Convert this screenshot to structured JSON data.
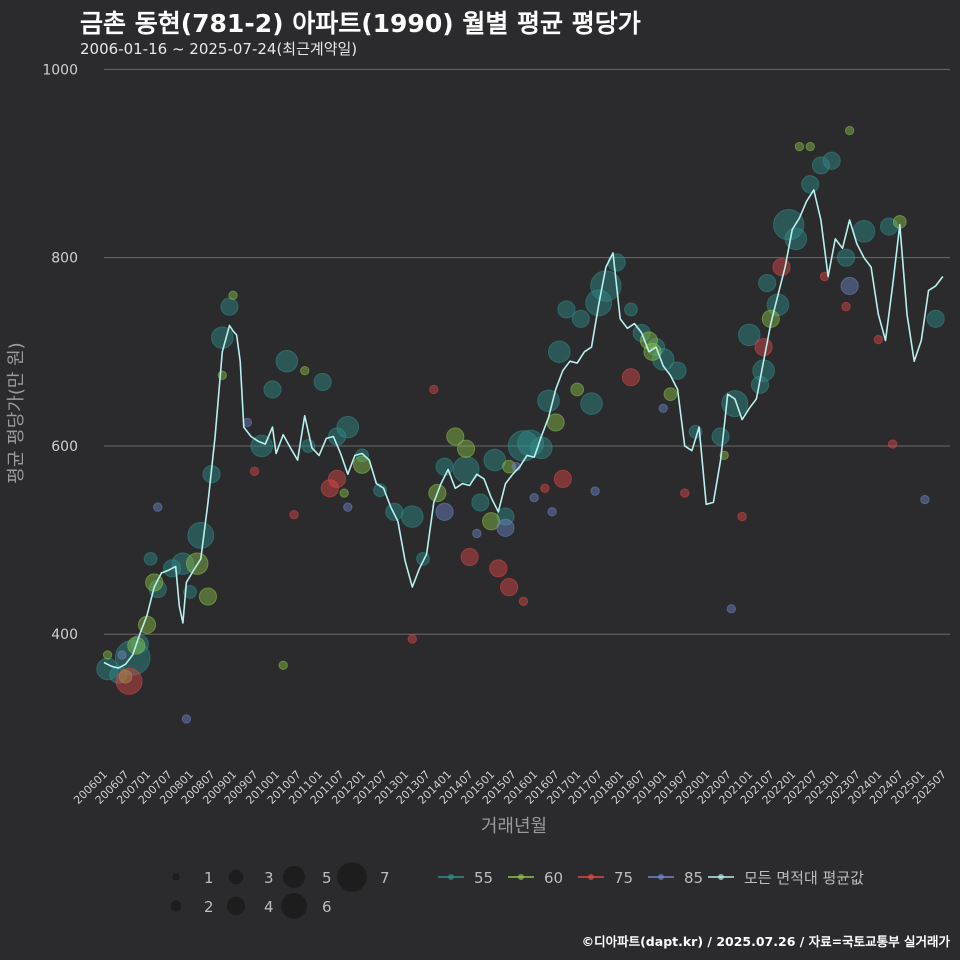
{
  "header": {
    "title": "금촌 동현(781-2) 아파트(1990) 월별 평균 평당가",
    "subtitle": "2006-01-16 ~ 2025-07-24(최근계약일)"
  },
  "footer": {
    "credit": "©디아파트(dapt.kr) / 2025.07.26 / 자료=국토교통부 실거래가"
  },
  "colors": {
    "background": "#2b2b2d",
    "grid": "#6a6a6a",
    "mean_line": "#b8f0ee",
    "s55": "#2f8f8c",
    "s60": "#8bc34a",
    "s75": "#e04848",
    "s85": "#6f88c8"
  },
  "chart_data": {
    "type": "scatter",
    "title": "금촌 동현(781-2) 아파트(1990) 월별 평균 평당가",
    "xlabel": "거래년월",
    "ylabel": "평균 평당가(만 원)",
    "ylim": [
      260,
      1010
    ],
    "yticks": [
      400,
      600,
      800,
      1000
    ],
    "xlim": [
      "2006-01",
      "2025-09"
    ],
    "xticks": [
      "200601",
      "200607",
      "200701",
      "200707",
      "200801",
      "200807",
      "200901",
      "200907",
      "201001",
      "201007",
      "201101",
      "201107",
      "201201",
      "201207",
      "201301",
      "201307",
      "201401",
      "201407",
      "201501",
      "201507",
      "201601",
      "201607",
      "201701",
      "201707",
      "201801",
      "201807",
      "201901",
      "201907",
      "202001",
      "202007",
      "202101",
      "202107",
      "202201",
      "202207",
      "202301",
      "202307",
      "202401",
      "202407",
      "202501",
      "202507"
    ],
    "grid": true,
    "size_legend": {
      "title": "",
      "values": [
        1,
        2,
        3,
        4,
        5,
        6,
        7
      ]
    },
    "series_legend": [
      {
        "key": "s55",
        "name": "55"
      },
      {
        "key": "s60",
        "name": "60"
      },
      {
        "key": "s75",
        "name": "75"
      },
      {
        "key": "s85",
        "name": "85"
      },
      {
        "key": "mean",
        "name": "모든 면적대 평균값"
      }
    ],
    "mean_line": {
      "name": "모든 면적대 평균값",
      "points": [
        [
          "2006-01",
          370
        ],
        [
          "2006-03",
          366
        ],
        [
          "2006-05",
          364
        ],
        [
          "2006-07",
          368
        ],
        [
          "2006-09",
          378
        ],
        [
          "2006-11",
          400
        ],
        [
          "2007-01",
          420
        ],
        [
          "2007-03",
          450
        ],
        [
          "2007-05",
          465
        ],
        [
          "2007-07",
          468
        ],
        [
          "2007-09",
          472
        ],
        [
          "2007-10",
          430
        ],
        [
          "2007-11",
          412
        ],
        [
          "2007-12",
          455
        ],
        [
          "2008-02",
          468
        ],
        [
          "2008-04",
          480
        ],
        [
          "2008-06",
          540
        ],
        [
          "2008-08",
          610
        ],
        [
          "2008-10",
          700
        ],
        [
          "2008-12",
          728
        ],
        [
          "2009-01",
          722
        ],
        [
          "2009-02",
          718
        ],
        [
          "2009-03",
          690
        ],
        [
          "2009-04",
          620
        ],
        [
          "2009-06",
          610
        ],
        [
          "2009-08",
          605
        ],
        [
          "2009-10",
          602
        ],
        [
          "2009-12",
          620
        ],
        [
          "2010-01",
          592
        ],
        [
          "2010-03",
          612
        ],
        [
          "2010-05",
          598
        ],
        [
          "2010-07",
          585
        ],
        [
          "2010-09",
          632
        ],
        [
          "2010-11",
          598
        ],
        [
          "2011-01",
          590
        ],
        [
          "2011-03",
          608
        ],
        [
          "2011-05",
          610
        ],
        [
          "2011-07",
          592
        ],
        [
          "2011-09",
          570
        ],
        [
          "2011-11",
          590
        ],
        [
          "2012-01",
          592
        ],
        [
          "2012-03",
          585
        ],
        [
          "2012-05",
          560
        ],
        [
          "2012-07",
          555
        ],
        [
          "2012-09",
          535
        ],
        [
          "2012-11",
          520
        ],
        [
          "2013-01",
          478
        ],
        [
          "2013-03",
          450
        ],
        [
          "2013-05",
          470
        ],
        [
          "2013-07",
          485
        ],
        [
          "2013-09",
          540
        ],
        [
          "2013-11",
          560
        ],
        [
          "2014-01",
          575
        ],
        [
          "2014-03",
          555
        ],
        [
          "2014-05",
          560
        ],
        [
          "2014-07",
          558
        ],
        [
          "2014-09",
          570
        ],
        [
          "2014-11",
          565
        ],
        [
          "2015-01",
          545
        ],
        [
          "2015-03",
          530
        ],
        [
          "2015-05",
          560
        ],
        [
          "2015-07",
          570
        ],
        [
          "2015-09",
          578
        ],
        [
          "2015-11",
          590
        ],
        [
          "2016-01",
          588
        ],
        [
          "2016-03",
          610
        ],
        [
          "2016-05",
          630
        ],
        [
          "2016-07",
          660
        ],
        [
          "2016-09",
          680
        ],
        [
          "2016-11",
          690
        ],
        [
          "2017-01",
          688
        ],
        [
          "2017-03",
          700
        ],
        [
          "2017-05",
          705
        ],
        [
          "2017-07",
          750
        ],
        [
          "2017-09",
          790
        ],
        [
          "2017-11",
          805
        ],
        [
          "2018-01",
          735
        ],
        [
          "2018-03",
          725
        ],
        [
          "2018-05",
          730
        ],
        [
          "2018-07",
          720
        ],
        [
          "2018-09",
          700
        ],
        [
          "2018-11",
          705
        ],
        [
          "2019-01",
          685
        ],
        [
          "2019-03",
          675
        ],
        [
          "2019-05",
          660
        ],
        [
          "2019-07",
          600
        ],
        [
          "2019-09",
          595
        ],
        [
          "2019-11",
          620
        ],
        [
          "2020-01",
          538
        ],
        [
          "2020-03",
          540
        ],
        [
          "2020-05",
          585
        ],
        [
          "2020-07",
          655
        ],
        [
          "2020-09",
          650
        ],
        [
          "2020-11",
          628
        ],
        [
          "2021-01",
          640
        ],
        [
          "2021-03",
          650
        ],
        [
          "2021-05",
          690
        ],
        [
          "2021-07",
          730
        ],
        [
          "2021-09",
          760
        ],
        [
          "2021-11",
          790
        ],
        [
          "2022-01",
          830
        ],
        [
          "2022-03",
          842
        ],
        [
          "2022-05",
          860
        ],
        [
          "2022-07",
          872
        ],
        [
          "2022-09",
          840
        ],
        [
          "2022-11",
          780
        ],
        [
          "2023-01",
          820
        ],
        [
          "2023-03",
          810
        ],
        [
          "2023-05",
          840
        ],
        [
          "2023-07",
          815
        ],
        [
          "2023-09",
          800
        ],
        [
          "2023-11",
          790
        ],
        [
          "2024-01",
          740
        ],
        [
          "2024-03",
          712
        ],
        [
          "2024-05",
          770
        ],
        [
          "2024-07",
          835
        ],
        [
          "2024-09",
          740
        ],
        [
          "2024-11",
          690
        ],
        [
          "2025-01",
          712
        ],
        [
          "2025-03",
          765
        ],
        [
          "2025-05",
          770
        ],
        [
          "2025-07",
          780
        ]
      ]
    },
    "scatter_series": [
      {
        "key": "s55",
        "name": "55",
        "points": [
          [
            "2006-02",
            363,
            4
          ],
          [
            "2006-05",
            357,
            3
          ],
          [
            "2006-09",
            375,
            7
          ],
          [
            "2006-11",
            390,
            3
          ],
          [
            "2007-02",
            480,
            2
          ],
          [
            "2007-04",
            448,
            3
          ],
          [
            "2007-08",
            470,
            3
          ],
          [
            "2007-11",
            475,
            4
          ],
          [
            "2008-01",
            445,
            2
          ],
          [
            "2008-04",
            505,
            5
          ],
          [
            "2008-07",
            570,
            3
          ],
          [
            "2008-10",
            715,
            4
          ],
          [
            "2008-12",
            748,
            3
          ],
          [
            "2009-09",
            600,
            4
          ],
          [
            "2009-12",
            660,
            3
          ],
          [
            "2010-04",
            690,
            4
          ],
          [
            "2010-10",
            600,
            2
          ],
          [
            "2011-02",
            668,
            3
          ],
          [
            "2011-06",
            610,
            3
          ],
          [
            "2011-09",
            620,
            4
          ],
          [
            "2012-01",
            590,
            2
          ],
          [
            "2012-06",
            553,
            2
          ],
          [
            "2012-10",
            530,
            3
          ],
          [
            "2013-03",
            525,
            4
          ],
          [
            "2013-06",
            480,
            2
          ],
          [
            "2013-12",
            578,
            3
          ],
          [
            "2014-06",
            575,
            5
          ],
          [
            "2014-10",
            540,
            3
          ],
          [
            "2015-02",
            585,
            4
          ],
          [
            "2015-05",
            525,
            3
          ],
          [
            "2015-10",
            600,
            6
          ],
          [
            "2015-12",
            603,
            5
          ],
          [
            "2016-03",
            598,
            4
          ],
          [
            "2016-05",
            648,
            4
          ],
          [
            "2016-08",
            700,
            4
          ],
          [
            "2016-10",
            745,
            3
          ],
          [
            "2017-02",
            735,
            3
          ],
          [
            "2017-05",
            645,
            4
          ],
          [
            "2017-07",
            752,
            5
          ],
          [
            "2017-09",
            770,
            6
          ],
          [
            "2017-12",
            795,
            3
          ],
          [
            "2018-04",
            745,
            2
          ],
          [
            "2018-07",
            720,
            3
          ],
          [
            "2018-11",
            705,
            3
          ],
          [
            "2019-01",
            692,
            4
          ],
          [
            "2019-05",
            680,
            3
          ],
          [
            "2019-10",
            615,
            2
          ],
          [
            "2020-05",
            610,
            3
          ],
          [
            "2020-09",
            645,
            5
          ],
          [
            "2021-01",
            718,
            4
          ],
          [
            "2021-04",
            665,
            3
          ],
          [
            "2021-05",
            680,
            4
          ],
          [
            "2021-06",
            773,
            3
          ],
          [
            "2021-09",
            750,
            4
          ],
          [
            "2021-12",
            835,
            6
          ],
          [
            "2022-02",
            820,
            4
          ],
          [
            "2022-06",
            878,
            3
          ],
          [
            "2022-09",
            898,
            3
          ],
          [
            "2022-12",
            903,
            3
          ],
          [
            "2023-04",
            800,
            3
          ],
          [
            "2023-09",
            828,
            4
          ],
          [
            "2024-04",
            833,
            3
          ],
          [
            "2025-05",
            735,
            3
          ]
        ]
      },
      {
        "key": "s60",
        "name": "60",
        "points": [
          [
            "2006-02",
            378,
            1
          ],
          [
            "2006-07",
            355,
            2
          ],
          [
            "2006-10",
            388,
            3
          ],
          [
            "2007-01",
            410,
            3
          ],
          [
            "2007-03",
            455,
            3
          ],
          [
            "2008-03",
            475,
            4
          ],
          [
            "2008-06",
            440,
            3
          ],
          [
            "2008-10",
            675,
            1
          ],
          [
            "2009-01",
            760,
            1
          ],
          [
            "2010-03",
            367,
            1
          ],
          [
            "2010-09",
            680,
            1
          ],
          [
            "2011-08",
            550,
            1
          ],
          [
            "2012-01",
            580,
            3
          ],
          [
            "2013-10",
            550,
            3
          ],
          [
            "2014-03",
            610,
            3
          ],
          [
            "2014-06",
            597,
            3
          ],
          [
            "2015-01",
            520,
            3
          ],
          [
            "2015-06",
            578,
            2
          ],
          [
            "2016-07",
            625,
            3
          ],
          [
            "2017-01",
            660,
            2
          ],
          [
            "2018-09",
            712,
            3
          ],
          [
            "2018-10",
            700,
            3
          ],
          [
            "2019-03",
            655,
            2
          ],
          [
            "2020-06",
            590,
            1
          ],
          [
            "2021-07",
            735,
            3
          ],
          [
            "2022-03",
            918,
            1
          ],
          [
            "2022-06",
            918,
            1
          ],
          [
            "2023-05",
            935,
            1
          ],
          [
            "2024-07",
            838,
            2
          ]
        ]
      },
      {
        "key": "s75",
        "name": "75",
        "points": [
          [
            "2006-08",
            350,
            5
          ],
          [
            "2009-07",
            573,
            1
          ],
          [
            "2010-06",
            527,
            1
          ],
          [
            "2011-04",
            555,
            3
          ],
          [
            "2011-06",
            565,
            3
          ],
          [
            "2013-03",
            395,
            1
          ],
          [
            "2013-09",
            660,
            1
          ],
          [
            "2014-07",
            482,
            3
          ],
          [
            "2015-03",
            470,
            3
          ],
          [
            "2015-06",
            450,
            3
          ],
          [
            "2015-10",
            435,
            1
          ],
          [
            "2016-04",
            555,
            1
          ],
          [
            "2016-09",
            565,
            3
          ],
          [
            "2018-04",
            673,
            3
          ],
          [
            "2019-07",
            550,
            1
          ],
          [
            "2020-11",
            525,
            1
          ],
          [
            "2021-05",
            705,
            3
          ],
          [
            "2021-10",
            790,
            3
          ],
          [
            "2022-10",
            780,
            1
          ],
          [
            "2023-04",
            748,
            1
          ],
          [
            "2024-01",
            713,
            1
          ],
          [
            "2024-05",
            602,
            1
          ]
        ]
      },
      {
        "key": "s85",
        "name": "85",
        "points": [
          [
            "2006-06",
            378,
            1
          ],
          [
            "2007-04",
            535,
            1
          ],
          [
            "2007-12",
            310,
            1
          ],
          [
            "2009-05",
            625,
            1
          ],
          [
            "2011-09",
            535,
            1
          ],
          [
            "2013-12",
            530,
            3
          ],
          [
            "2014-09",
            507,
            1
          ],
          [
            "2015-05",
            513,
            3
          ],
          [
            "2015-08",
            578,
            1
          ],
          [
            "2016-01",
            545,
            1
          ],
          [
            "2016-06",
            530,
            1
          ],
          [
            "2017-06",
            552,
            1
          ],
          [
            "2019-01",
            640,
            1
          ],
          [
            "2020-08",
            427,
            1
          ],
          [
            "2023-05",
            770,
            3
          ],
          [
            "2025-02",
            543,
            1
          ]
        ]
      }
    ]
  }
}
